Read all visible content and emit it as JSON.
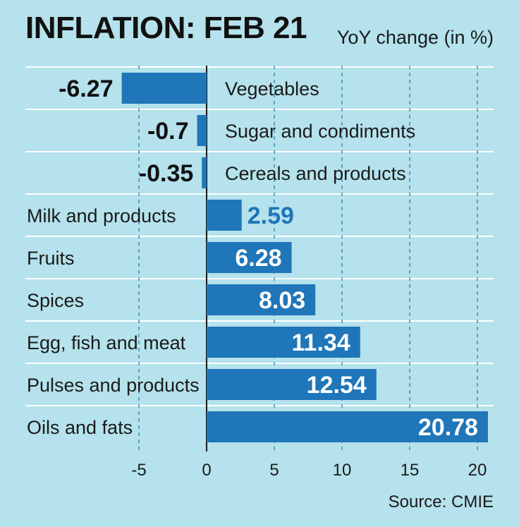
{
  "chart_data": {
    "type": "bar",
    "orientation": "horizontal",
    "title": "INFLATION: FEB 21",
    "subtitle": "YoY change (in %)",
    "source": "Source: CMIE",
    "categories": [
      "Vegetables",
      "Sugar and condiments",
      "Cereals and products",
      "Milk and products",
      "Fruits",
      "Spices",
      "Egg, fish and meat",
      "Pulses and products",
      "Oils and fats"
    ],
    "values": [
      -6.27,
      -0.7,
      -0.35,
      2.59,
      6.28,
      8.03,
      11.34,
      12.54,
      20.78
    ],
    "value_labels": [
      "-6.27",
      "-0.7",
      "-0.35",
      "2.59",
      "6.28",
      "8.03",
      "11.34",
      "12.54",
      "20.78"
    ],
    "xlim": [
      -10,
      21
    ],
    "xticks": [
      -5,
      0,
      5,
      10,
      15,
      20
    ],
    "xtick_labels": [
      "-5",
      "0",
      "5",
      "10",
      "15",
      "20"
    ],
    "xlabel": "",
    "ylabel": "",
    "grid": "vertical dashed",
    "colors": {
      "bar": "#1f76b9",
      "background": "#b5e2ec",
      "separator": "#ffffff",
      "grid": "#2a7fa8",
      "text": "#111111"
    }
  }
}
